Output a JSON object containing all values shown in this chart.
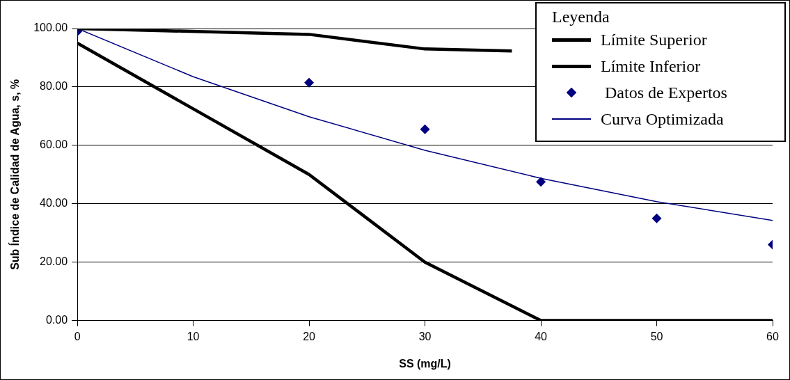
{
  "chart_data": {
    "type": "line",
    "xlabel": "SS (mg/L)",
    "ylabel": "Sub Índice de Calidad de Agua, s, %",
    "legend_title": "Leyenda",
    "series": [
      {
        "name": "Límite Superior",
        "color": "#000000",
        "x": [
          0,
          20,
          30,
          37.5
        ],
        "values": [
          100,
          98,
          93,
          92.3
        ]
      },
      {
        "name": "Límite Inferior",
        "color": "#000000",
        "x": [
          0,
          20,
          30,
          40,
          50,
          60
        ],
        "values": [
          95,
          50,
          20,
          0,
          0,
          0
        ]
      },
      {
        "name": " Datos de Expertos",
        "type": "scatter",
        "color": "#000080",
        "marker": "diamond",
        "x": [
          0,
          20,
          30,
          40,
          50,
          60
        ],
        "values": [
          99,
          81.5,
          65.5,
          47.5,
          35,
          26
        ]
      },
      {
        "name": "Curva Optimizada",
        "color": "#000080",
        "x": [
          0,
          10,
          20,
          30,
          40,
          50,
          60
        ],
        "values": [
          100,
          83.5,
          69.8,
          58.3,
          48.7,
          40.7,
          34.3
        ]
      }
    ],
    "xlim": [
      0,
      60
    ],
    "xticks": [
      0,
      10,
      20,
      30,
      40,
      50,
      60
    ],
    "ylim": [
      0,
      100
    ],
    "yticks": [
      {
        "value": 0,
        "label": "0.00"
      },
      {
        "value": 20,
        "label": "20.00"
      },
      {
        "value": 40,
        "label": "40.00"
      },
      {
        "value": 60,
        "label": "60.00"
      },
      {
        "value": 80,
        "label": "80.00"
      },
      {
        "value": 100,
        "label": "100.00"
      }
    ],
    "grid": "y",
    "legend": "top right"
  }
}
